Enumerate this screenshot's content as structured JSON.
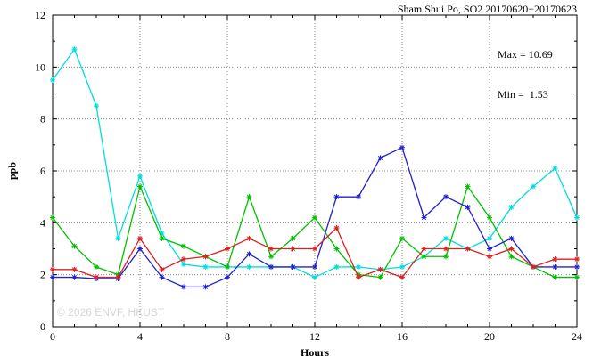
{
  "watermark": "© 2026 ENVF, HKUST",
  "annotation": {
    "max_label": "Max = 10.69",
    "min_label": "Min =  1.53"
  },
  "chart_data": {
    "type": "line",
    "title": "Sham Shui Po, SO2 20170620−20170623",
    "xlabel": "Hours",
    "ylabel": "ppb",
    "xlim": [
      0,
      24
    ],
    "ylim": [
      0,
      12
    ],
    "xticks": [
      0,
      4,
      8,
      12,
      16,
      20,
      24
    ],
    "yticks": [
      0,
      2,
      4,
      6,
      8,
      10,
      12
    ],
    "grid": true,
    "legend": "none",
    "max": 10.69,
    "min": 1.53,
    "x": [
      0,
      1,
      2,
      3,
      4,
      5,
      6,
      7,
      8,
      9,
      10,
      11,
      12,
      13,
      14,
      15,
      16,
      17,
      18,
      19,
      20,
      21,
      22,
      23,
      24
    ],
    "series": [
      {
        "name": "cyan",
        "color": "#00dddd",
        "values": [
          9.5,
          10.69,
          8.5,
          3.4,
          5.8,
          3.6,
          2.4,
          2.3,
          2.3,
          2.3,
          2.3,
          2.3,
          1.9,
          2.3,
          2.3,
          2.2,
          2.3,
          2.7,
          3.4,
          3.0,
          3.4,
          4.6,
          5.4,
          6.1,
          4.2
        ]
      },
      {
        "name": "green",
        "color": "#00c000",
        "values": [
          4.2,
          3.1,
          2.3,
          2.0,
          5.4,
          3.4,
          3.1,
          2.7,
          2.3,
          5.0,
          2.7,
          3.4,
          4.2,
          3.0,
          2.0,
          1.9,
          3.4,
          2.7,
          2.7,
          5.4,
          4.2,
          2.7,
          2.3,
          1.9,
          1.9
        ]
      },
      {
        "name": "blue",
        "color": "#2222cc",
        "values": [
          1.9,
          1.9,
          1.85,
          1.85,
          3.0,
          1.9,
          1.53,
          1.53,
          1.9,
          2.8,
          2.3,
          2.3,
          2.3,
          5.0,
          5.0,
          6.5,
          6.9,
          4.2,
          5.0,
          4.6,
          3.0,
          3.4,
          2.3,
          2.3,
          2.3
        ]
      },
      {
        "name": "red",
        "color": "#dd2020",
        "values": [
          2.2,
          2.2,
          1.9,
          1.9,
          3.4,
          2.2,
          2.6,
          2.7,
          3.0,
          3.4,
          3.0,
          3.0,
          3.0,
          3.8,
          1.9,
          2.2,
          1.9,
          3.0,
          3.0,
          3.0,
          2.7,
          3.0,
          2.3,
          2.6,
          2.6
        ]
      }
    ]
  }
}
